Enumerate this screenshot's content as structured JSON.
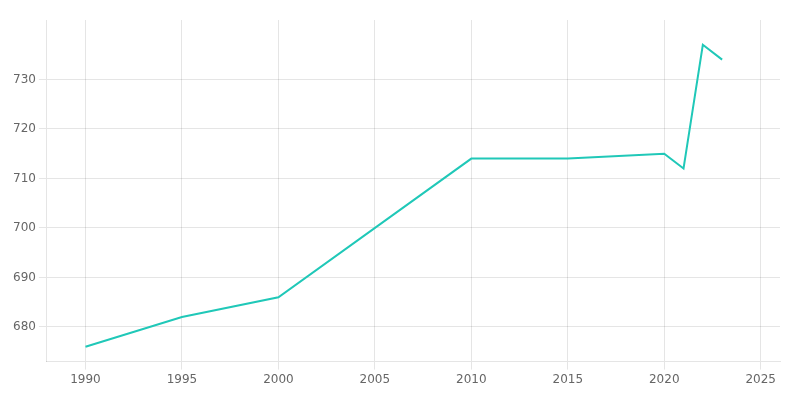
{
  "chart_data": {
    "type": "line",
    "x": [
      1990,
      1995,
      2000,
      2010,
      2015,
      2020,
      2021,
      2022,
      2023
    ],
    "values": [
      676,
      682,
      686,
      714,
      714,
      715,
      712,
      737,
      734
    ],
    "color": "#20C8B8",
    "marker": "none",
    "xlim": [
      1988,
      2026
    ],
    "ylim": [
      673,
      742
    ],
    "xticks": [
      1990,
      1995,
      2000,
      2005,
      2010,
      2015,
      2020,
      2025
    ],
    "yticks": [
      680,
      690,
      700,
      710,
      720,
      730
    ],
    "grid": true
  }
}
